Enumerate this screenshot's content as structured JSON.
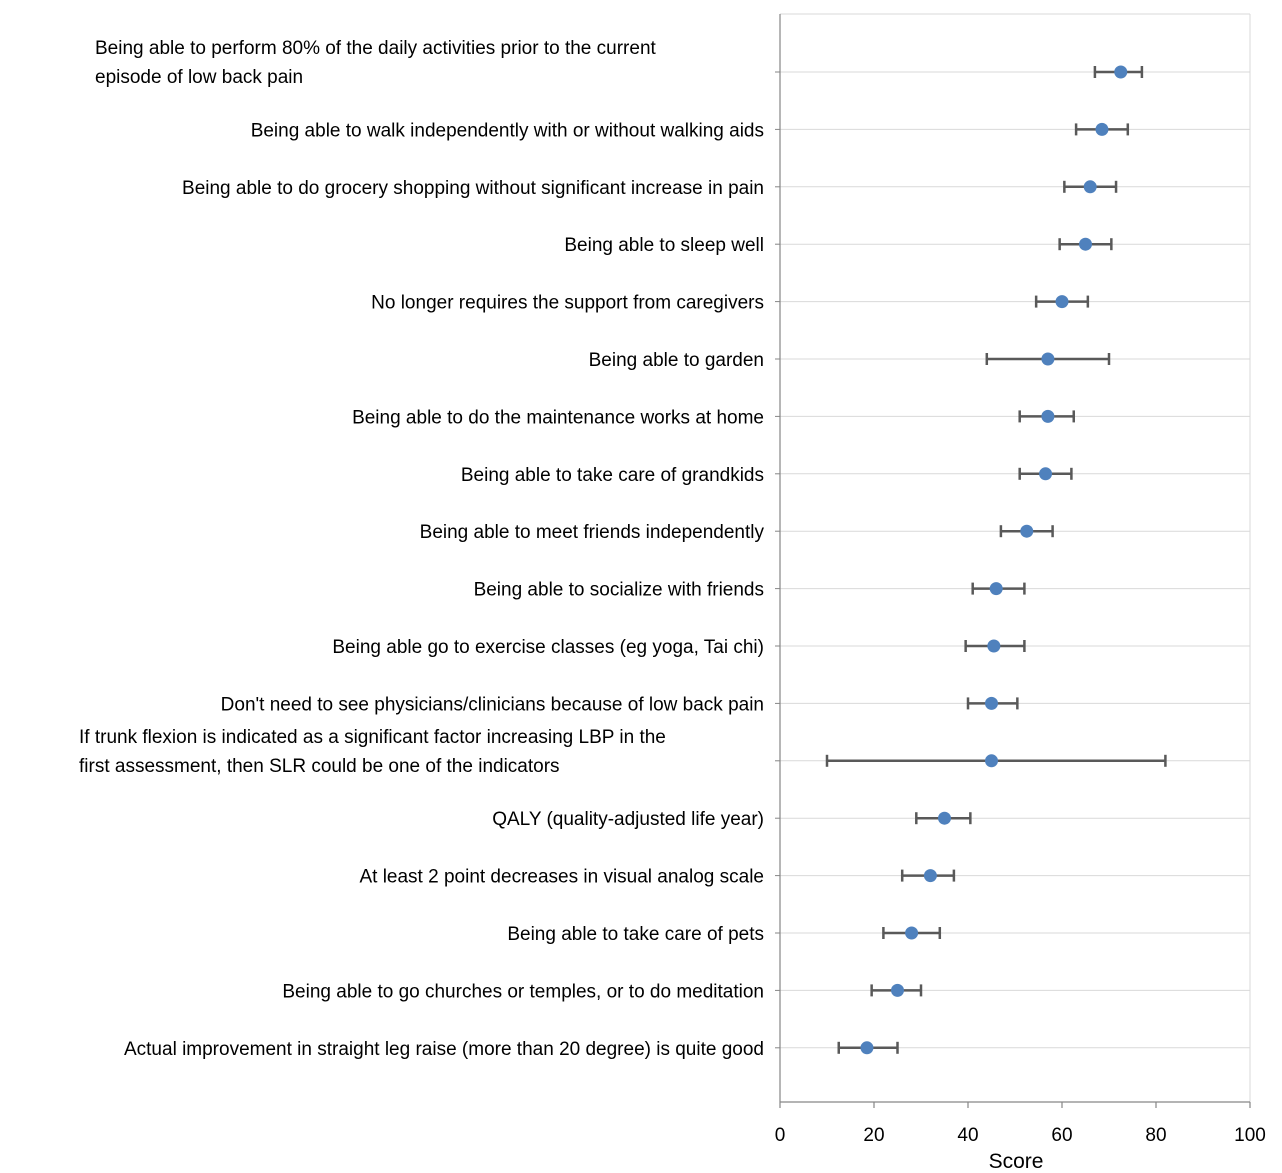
{
  "chart_data": {
    "type": "scatter",
    "orientation": "horizontal",
    "error_bars": true,
    "title": "",
    "xlabel": "Score",
    "ylabel": "",
    "xlim": [
      0,
      100
    ],
    "x_ticks": [
      0,
      20,
      40,
      60,
      80,
      100
    ],
    "grid": "horizontal",
    "legend": "none",
    "marker_color": "#4F81BD",
    "errorbar_color": "#595959",
    "categories": [
      [
        "Being able to perform 80% of the daily activities prior to the current",
        "episode of low back pain"
      ],
      [
        "Being able to walk independently with or without walking aids"
      ],
      [
        "Being able to do grocery shopping without significant increase in pain"
      ],
      [
        "Being able to sleep well"
      ],
      [
        "No longer requires the support from caregivers"
      ],
      [
        "Being able to garden"
      ],
      [
        "Being able to do the maintenance works at home"
      ],
      [
        "Being able to take care of grandkids"
      ],
      [
        "Being able to meet friends independently"
      ],
      [
        "Being able to socialize with friends"
      ],
      [
        "Being able go to exercise classes (eg yoga, Tai chi)"
      ],
      [
        "Don't need to see physicians/clinicians because of low back pain"
      ],
      [
        "If trunk flexion is indicated as a significant factor increasing LBP in the",
        "first assessment, then SLR could be one of the indicators"
      ],
      [
        "QALY (quality-adjusted life year)"
      ],
      [
        "At least 2 point decreases in visual analog scale"
      ],
      [
        "Being able to take care of pets"
      ],
      [
        "Being able to go churches or temples, or to do meditation"
      ],
      [
        "Actual improvement in straight leg raise (more than 20 degree) is quite good"
      ]
    ],
    "values": [
      72.5,
      68.5,
      66,
      65,
      60,
      57,
      57,
      56.5,
      52.5,
      46,
      45.5,
      45,
      45,
      35,
      32,
      28,
      25,
      18.5
    ],
    "ci_low": [
      67,
      63,
      60.5,
      59.5,
      54.5,
      44,
      51,
      51,
      47,
      41,
      39.5,
      40,
      10,
      29,
      26,
      22,
      19.5,
      12.5
    ],
    "ci_high": [
      77,
      74,
      71.5,
      70.5,
      65.5,
      70,
      62.5,
      62,
      58,
      52,
      52,
      50.5,
      82,
      40.5,
      37,
      34,
      30,
      25
    ]
  }
}
